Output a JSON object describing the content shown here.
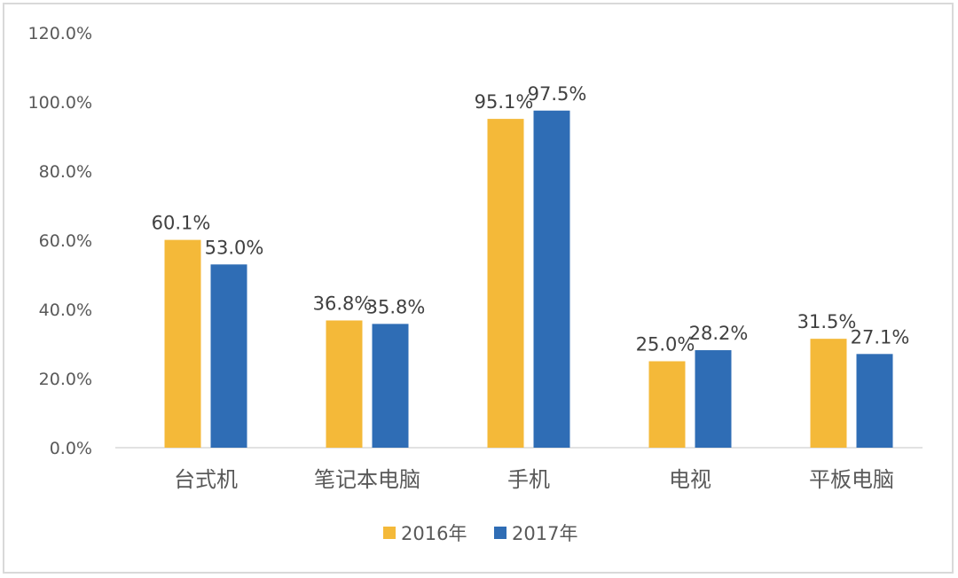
{
  "chart_data": {
    "type": "bar",
    "title": "",
    "xlabel": "",
    "ylabel": "",
    "ylim": [
      0,
      120
    ],
    "yticks": [
      "0.0%",
      "20.0%",
      "40.0%",
      "60.0%",
      "80.0%",
      "100.0%",
      "120.0%"
    ],
    "categories": [
      "台式机",
      "笔记本电脑",
      "手机",
      "电视",
      "平板电脑"
    ],
    "series": [
      {
        "name": "2016年",
        "color": "#f4b939",
        "values": [
          60.1,
          36.8,
          95.1,
          25.0,
          31.5
        ],
        "labels": [
          "60.1%",
          "36.8%",
          "95.1%",
          "25.0%",
          "31.5%"
        ]
      },
      {
        "name": "2017年",
        "color": "#2f6db5",
        "values": [
          53.0,
          35.8,
          97.5,
          28.2,
          27.1
        ],
        "labels": [
          "53.0%",
          "35.8%",
          "97.5%",
          "28.2%",
          "27.1%"
        ]
      }
    ],
    "legend_position": "bottom",
    "grid": false
  }
}
